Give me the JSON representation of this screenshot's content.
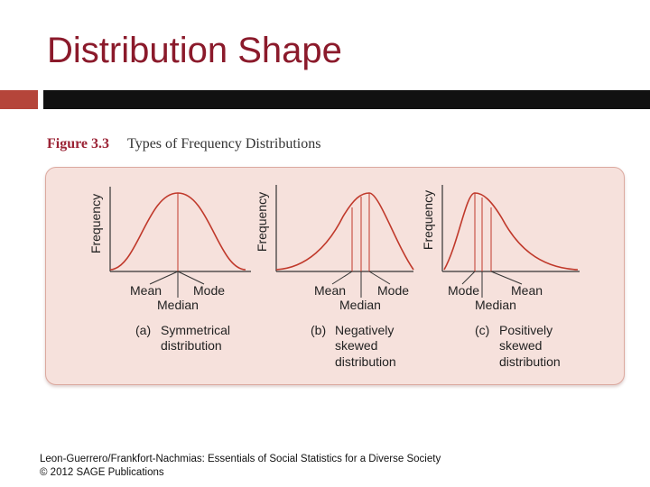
{
  "slide": {
    "title": "Distribution Shape",
    "accent_color": "#8b1a2b"
  },
  "figure": {
    "number": "Figure 3.3",
    "title": "Types of Frequency Distributions",
    "y_label": "Frequency",
    "panels": [
      {
        "id": "a",
        "shape": "symmetrical",
        "letter": "(a)",
        "description_lines": [
          "Symmetrical",
          "distribution"
        ],
        "top_markers": [
          "Mean",
          "Mode"
        ],
        "bottom_marker": "Median"
      },
      {
        "id": "b",
        "shape": "negatively-skewed",
        "letter": "(b)",
        "description_lines": [
          "Negatively",
          "skewed",
          "distribution"
        ],
        "top_markers": [
          "Mean",
          "Mode"
        ],
        "bottom_marker": "Median"
      },
      {
        "id": "c",
        "shape": "positively-skewed",
        "letter": "(c)",
        "description_lines": [
          "Positively",
          "skewed",
          "distribution"
        ],
        "top_markers": [
          "Mode",
          "Mean"
        ],
        "bottom_marker": "Median"
      }
    ],
    "curve_color": "#c0392b"
  },
  "footer": {
    "line1": "Leon-Guerrero/Frankfort-Nachmias: Essentials of Social Statistics for a Diverse Society",
    "line2": "© 2012 SAGE Publications"
  }
}
